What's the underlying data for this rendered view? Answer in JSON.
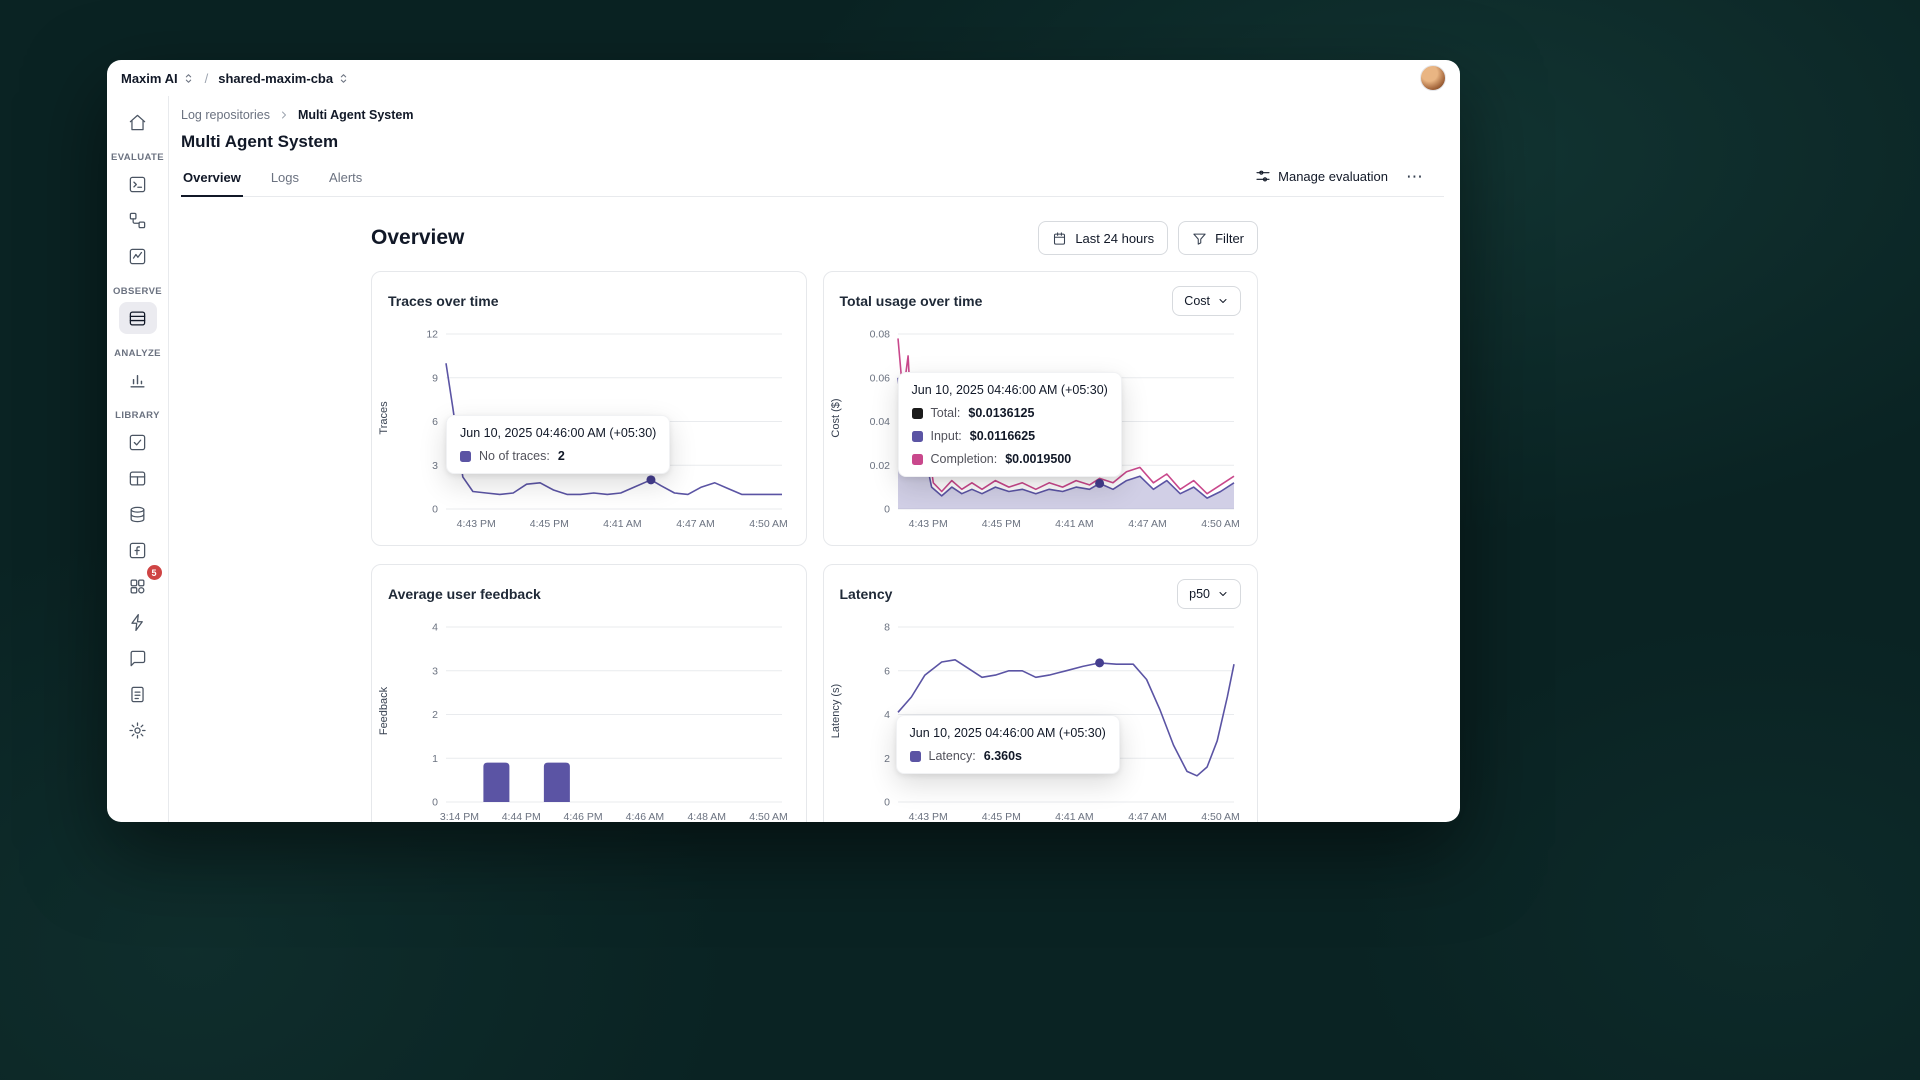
{
  "topbar": {
    "brand": "Maxim AI",
    "separator": "/",
    "workspace": "shared-maxim-cba"
  },
  "sidebar": {
    "labels": {
      "evaluate": "EVALUATE",
      "observe": "OBSERVE",
      "analyze": "ANALYZE",
      "library": "LIBRARY"
    },
    "badge_count": "5"
  },
  "breadcrumb": {
    "parent": "Log repositories",
    "current": "Multi Agent System"
  },
  "page": {
    "title": "Multi Agent System",
    "tabs": [
      {
        "label": "Overview"
      },
      {
        "label": "Logs"
      },
      {
        "label": "Alerts"
      }
    ],
    "manage_evaluation": "Manage evaluation",
    "more_glyph": "⋯"
  },
  "toolbar": {
    "heading": "Overview",
    "range_label": "Last 24 hours",
    "filter_label": "Filter"
  },
  "colors": {
    "accent_purple": "#5b54a4",
    "accent_pink": "#c9488c",
    "marker": "#453e8f",
    "black": "#1a1a1a"
  },
  "chart_data": [
    {
      "id": "traces",
      "type": "line",
      "title": "Traces over time",
      "ylabel": "Traces",
      "ylim": [
        0,
        12
      ],
      "yticks": [
        0,
        3,
        6,
        9,
        12
      ],
      "xticks": [
        "4:43 PM",
        "4:45 PM",
        "4:41 AM",
        "4:47 AM",
        "4:50 AM"
      ],
      "series": [
        {
          "name": "No of traces",
          "color": "#5b54a4",
          "points": [
            [
              0,
              10
            ],
            [
              0.02,
              7
            ],
            [
              0.05,
              2.2
            ],
            [
              0.08,
              1.2
            ],
            [
              0.12,
              1.1
            ],
            [
              0.16,
              1.0
            ],
            [
              0.2,
              1.1
            ],
            [
              0.24,
              1.7
            ],
            [
              0.28,
              1.8
            ],
            [
              0.32,
              1.3
            ],
            [
              0.36,
              1.0
            ],
            [
              0.4,
              1.0
            ],
            [
              0.44,
              1.1
            ],
            [
              0.48,
              1.0
            ],
            [
              0.52,
              1.1
            ],
            [
              0.56,
              1.5
            ],
            [
              0.61,
              2.0
            ],
            [
              0.64,
              1.6
            ],
            [
              0.68,
              1.1
            ],
            [
              0.72,
              1.0
            ],
            [
              0.76,
              1.5
            ],
            [
              0.8,
              1.8
            ],
            [
              0.84,
              1.4
            ],
            [
              0.88,
              1.0
            ],
            [
              0.92,
              1.0
            ],
            [
              0.96,
              1.0
            ],
            [
              1,
              1.0
            ]
          ]
        }
      ],
      "marker": {
        "x": 0.61,
        "y": 2,
        "color": "#453e8f"
      },
      "tooltip": {
        "title": "Jun 10, 2025 04:46:00 AM (+05:30)",
        "rows": [
          {
            "swatch": "#5b54a4",
            "label": "No of traces:",
            "value": "2"
          }
        ]
      }
    },
    {
      "id": "usage",
      "type": "line",
      "title": "Total usage over time",
      "control": "Cost",
      "ylabel": "Cost ($)",
      "ylim": [
        0,
        0.08
      ],
      "yticks": [
        0,
        0.02,
        0.04,
        0.06,
        0.08
      ],
      "xticks": [
        "4:43 PM",
        "4:45 PM",
        "4:41 AM",
        "4:47 AM",
        "4:50 AM"
      ],
      "series": [
        {
          "name": "Input",
          "color": "#5b54a4",
          "fill": "rgba(90,81,165,0.28)",
          "points": [
            [
              0,
              0.06
            ],
            [
              0.02,
              0.035
            ],
            [
              0.04,
              0.045
            ],
            [
              0.06,
              0.02
            ],
            [
              0.08,
              0.025
            ],
            [
              0.1,
              0.01
            ],
            [
              0.13,
              0.006
            ],
            [
              0.16,
              0.01
            ],
            [
              0.19,
              0.007
            ],
            [
              0.22,
              0.009
            ],
            [
              0.25,
              0.007
            ],
            [
              0.29,
              0.01
            ],
            [
              0.33,
              0.008
            ],
            [
              0.37,
              0.009
            ],
            [
              0.41,
              0.007
            ],
            [
              0.45,
              0.009
            ],
            [
              0.49,
              0.008
            ],
            [
              0.53,
              0.01
            ],
            [
              0.57,
              0.009
            ],
            [
              0.6,
              0.0117
            ],
            [
              0.64,
              0.009
            ],
            [
              0.68,
              0.013
            ],
            [
              0.72,
              0.015
            ],
            [
              0.76,
              0.009
            ],
            [
              0.8,
              0.013
            ],
            [
              0.84,
              0.007
            ],
            [
              0.88,
              0.01
            ],
            [
              0.92,
              0.005
            ],
            [
              0.96,
              0.008
            ],
            [
              1,
              0.012
            ]
          ]
        },
        {
          "name": "Completion",
          "color": "#c9488c",
          "points": [
            [
              0,
              0.078
            ],
            [
              0.015,
              0.052
            ],
            [
              0.03,
              0.07
            ],
            [
              0.045,
              0.026
            ],
            [
              0.06,
              0.044
            ],
            [
              0.075,
              0.016
            ],
            [
              0.09,
              0.028
            ],
            [
              0.105,
              0.012
            ],
            [
              0.13,
              0.008
            ],
            [
              0.16,
              0.013
            ],
            [
              0.19,
              0.009
            ],
            [
              0.22,
              0.012
            ],
            [
              0.25,
              0.009
            ],
            [
              0.29,
              0.013
            ],
            [
              0.33,
              0.01
            ],
            [
              0.37,
              0.012
            ],
            [
              0.41,
              0.009
            ],
            [
              0.45,
              0.012
            ],
            [
              0.49,
              0.01
            ],
            [
              0.53,
              0.013
            ],
            [
              0.57,
              0.011
            ],
            [
              0.6,
              0.014
            ],
            [
              0.64,
              0.012
            ],
            [
              0.68,
              0.017
            ],
            [
              0.72,
              0.019
            ],
            [
              0.76,
              0.012
            ],
            [
              0.8,
              0.016
            ],
            [
              0.84,
              0.009
            ],
            [
              0.88,
              0.013
            ],
            [
              0.92,
              0.007
            ],
            [
              0.96,
              0.011
            ],
            [
              1,
              0.015
            ]
          ]
        }
      ],
      "marker": {
        "x": 0.6,
        "y": 0.0117,
        "color": "#453e8f"
      },
      "tooltip": {
        "title": "Jun 10, 2025 04:46:00 AM (+05:30)",
        "rows": [
          {
            "swatch": "#1a1a1a",
            "label": "Total:",
            "value": "$0.0136125"
          },
          {
            "swatch": "#5b54a4",
            "label": "Input:",
            "value": "$0.0116625"
          },
          {
            "swatch": "#c9488c",
            "label": "Completion:",
            "value": "$0.0019500"
          }
        ]
      }
    },
    {
      "id": "feedback",
      "type": "bar",
      "title": "Average user feedback",
      "ylabel": "Feedback",
      "ylim": [
        0,
        4
      ],
      "yticks": [
        0,
        1,
        2,
        3,
        4
      ],
      "xticks": [
        "3:14 PM",
        "4:44 PM",
        "4:46 PM",
        "4:46 AM",
        "4:48 AM",
        "4:50 AM"
      ],
      "bar_color": "#5b54a4",
      "bars": [
        {
          "x": 0.15,
          "value": 0.9
        },
        {
          "x": 0.33,
          "value": 0.9
        }
      ]
    },
    {
      "id": "latency",
      "type": "line",
      "title": "Latency",
      "control": "p50",
      "ylabel": "Latency (s)",
      "ylim": [
        0,
        8
      ],
      "yticks": [
        0,
        2,
        4,
        6,
        8
      ],
      "xticks": [
        "4:43 PM",
        "4:45 PM",
        "4:41 AM",
        "4:47 AM",
        "4:50 AM"
      ],
      "series": [
        {
          "name": "Latency",
          "color": "#5b54a4",
          "points": [
            [
              0,
              4.1
            ],
            [
              0.04,
              4.8
            ],
            [
              0.08,
              5.8
            ],
            [
              0.13,
              6.4
            ],
            [
              0.17,
              6.5
            ],
            [
              0.21,
              6.1
            ],
            [
              0.25,
              5.7
            ],
            [
              0.29,
              5.8
            ],
            [
              0.33,
              6.0
            ],
            [
              0.37,
              6.0
            ],
            [
              0.41,
              5.7
            ],
            [
              0.45,
              5.8
            ],
            [
              0.5,
              6.0
            ],
            [
              0.55,
              6.2
            ],
            [
              0.6,
              6.36
            ],
            [
              0.65,
              6.3
            ],
            [
              0.7,
              6.3
            ],
            [
              0.74,
              5.6
            ],
            [
              0.78,
              4.2
            ],
            [
              0.82,
              2.6
            ],
            [
              0.86,
              1.4
            ],
            [
              0.89,
              1.2
            ],
            [
              0.92,
              1.6
            ],
            [
              0.95,
              2.8
            ],
            [
              0.98,
              4.8
            ],
            [
              1,
              6.3
            ]
          ]
        }
      ],
      "marker": {
        "x": 0.6,
        "y": 6.36,
        "color": "#453e8f"
      },
      "tooltip": {
        "title": "Jun 10, 2025 04:46:00 AM (+05:30)",
        "rows": [
          {
            "swatch": "#5b54a4",
            "label": "Latency:",
            "value": "6.360s"
          }
        ]
      }
    }
  ]
}
